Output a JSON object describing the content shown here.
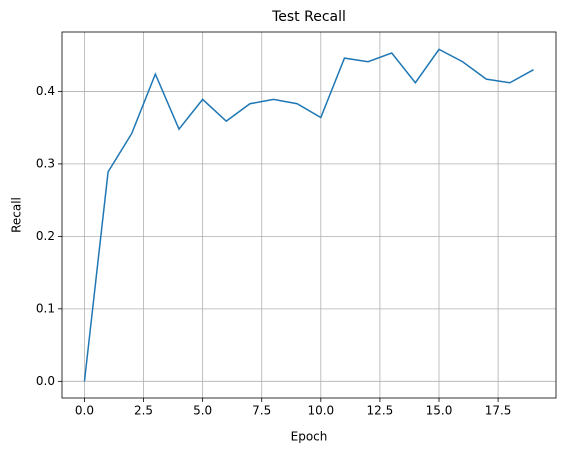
{
  "chart_data": {
    "type": "line",
    "title": "Test Recall",
    "x_label": "Epoch",
    "y_label": "Recall",
    "x": [
      0,
      1,
      2,
      3,
      4,
      5,
      6,
      7,
      8,
      9,
      10,
      11,
      12,
      13,
      14,
      15,
      16,
      17,
      18,
      19
    ],
    "series": [
      {
        "name": "Recall",
        "color": "#1f77b4",
        "values": [
          0,
          0.289,
          0.342,
          0.424,
          0.348,
          0.389,
          0.359,
          0.383,
          0.389,
          0.383,
          0.364,
          0.446,
          0.441,
          0.453,
          0.412,
          0.458,
          0.441,
          0.417,
          0.412,
          0.43
        ]
      }
    ],
    "xlim": [
      -0.95,
      19.95
    ],
    "ylim": [
      -0.023,
      0.482
    ],
    "xticks": [
      {
        "value": 0,
        "label": "0.0"
      },
      {
        "value": 2.5,
        "label": "2.5"
      },
      {
        "value": 5,
        "label": "5.0"
      },
      {
        "value": 7.5,
        "label": "7.5"
      },
      {
        "value": 10,
        "label": "10.0"
      },
      {
        "value": 12.5,
        "label": "12.5"
      },
      {
        "value": 15,
        "label": "15.0"
      },
      {
        "value": 17.5,
        "label": "17.5"
      }
    ],
    "yticks": [
      {
        "value": 0,
        "label": "0.0"
      },
      {
        "value": 0.1,
        "label": "0.1"
      },
      {
        "value": 0.2,
        "label": "0.2"
      },
      {
        "value": 0.3,
        "label": "0.3"
      },
      {
        "value": 0.4,
        "label": "0.4"
      }
    ],
    "grid": true
  }
}
